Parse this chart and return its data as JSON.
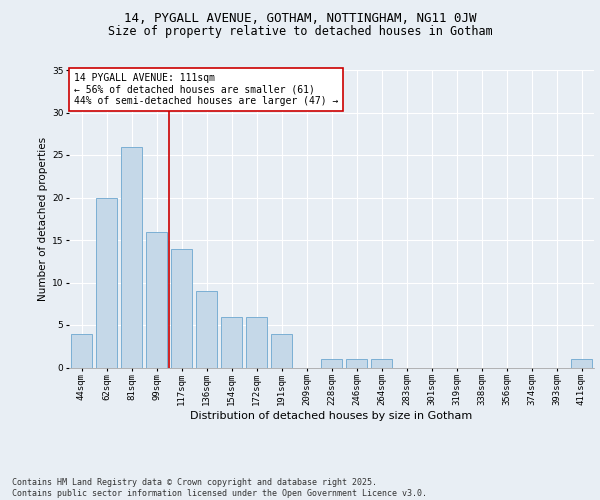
{
  "title1": "14, PYGALL AVENUE, GOTHAM, NOTTINGHAM, NG11 0JW",
  "title2": "Size of property relative to detached houses in Gotham",
  "xlabel": "Distribution of detached houses by size in Gotham",
  "ylabel": "Number of detached properties",
  "categories": [
    "44sqm",
    "62sqm",
    "81sqm",
    "99sqm",
    "117sqm",
    "136sqm",
    "154sqm",
    "172sqm",
    "191sqm",
    "209sqm",
    "228sqm",
    "246sqm",
    "264sqm",
    "283sqm",
    "301sqm",
    "319sqm",
    "338sqm",
    "356sqm",
    "374sqm",
    "393sqm",
    "411sqm"
  ],
  "values": [
    4,
    20,
    26,
    16,
    14,
    9,
    6,
    6,
    4,
    0,
    1,
    1,
    1,
    0,
    0,
    0,
    0,
    0,
    0,
    0,
    1
  ],
  "bar_color": "#c5d8e8",
  "bar_edge_color": "#7bafd4",
  "vline_x": 3.5,
  "vline_color": "#cc0000",
  "annotation_text": "14 PYGALL AVENUE: 111sqm\n← 56% of detached houses are smaller (61)\n44% of semi-detached houses are larger (47) →",
  "annotation_box_color": "#ffffff",
  "annotation_box_edge": "#cc0000",
  "ylim": [
    0,
    35
  ],
  "yticks": [
    0,
    5,
    10,
    15,
    20,
    25,
    30,
    35
  ],
  "background_color": "#e8eef4",
  "grid_color": "#ffffff",
  "footer": "Contains HM Land Registry data © Crown copyright and database right 2025.\nContains public sector information licensed under the Open Government Licence v3.0.",
  "title1_fontsize": 9,
  "title2_fontsize": 8.5,
  "xlabel_fontsize": 8,
  "ylabel_fontsize": 7.5,
  "tick_fontsize": 6.5,
  "annotation_fontsize": 7,
  "footer_fontsize": 6
}
